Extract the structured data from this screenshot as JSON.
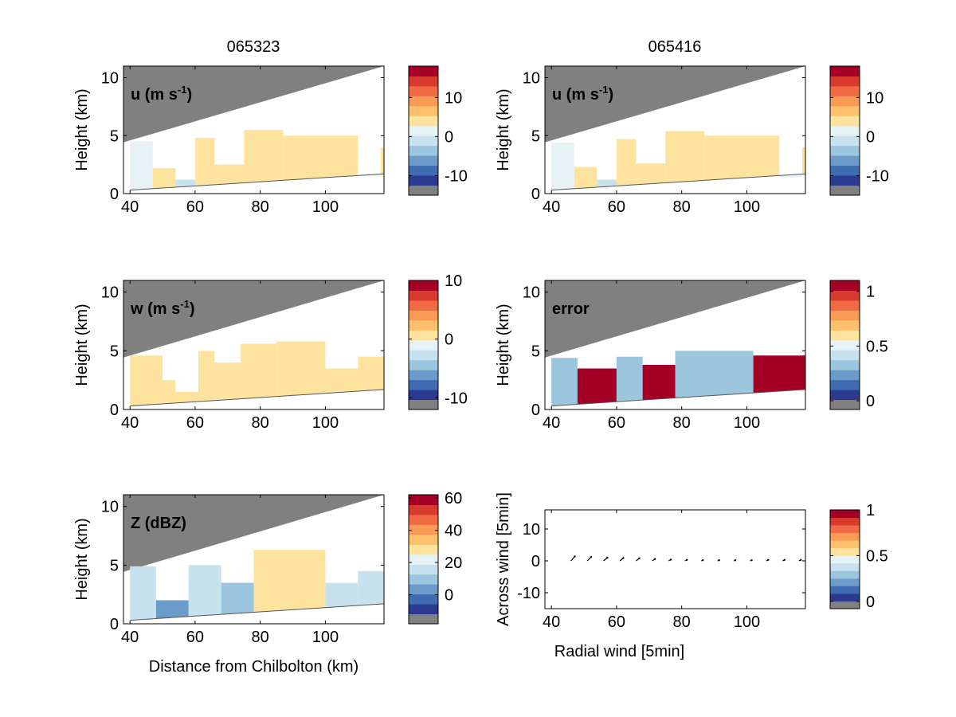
{
  "column_titles": [
    "065323",
    "065416"
  ],
  "colormap": [
    "#2b3990",
    "#3f6bb0",
    "#6a9bc9",
    "#9cc5de",
    "#c7e2ee",
    "#e6f2f3",
    "#fde39e",
    "#fdc06b",
    "#f99a55",
    "#f06a43",
    "#d83a2e",
    "#a50026"
  ],
  "fill_color": "#808080",
  "chart_data": [
    {
      "id": "u1",
      "type": "heatmap",
      "label": "u (m s",
      "label_sup": "-1",
      "label_close": ")",
      "ylabel": "Height (km)",
      "xlabel": "",
      "xlim": [
        38,
        118
      ],
      "ylim": [
        0,
        11
      ],
      "xticks": [
        40,
        60,
        80,
        100
      ],
      "yticks": [
        0,
        5,
        10
      ],
      "clim": [
        -15,
        18
      ],
      "cticks": [
        10,
        0,
        -10
      ],
      "segments": [
        {
          "x": [
            40,
            47
          ],
          "top": 4.5,
          "value": 2
        },
        {
          "x": [
            47,
            54
          ],
          "top": 2.2,
          "value": 3
        },
        {
          "x": [
            54,
            60
          ],
          "top": 1.2,
          "value": -2
        },
        {
          "x": [
            60,
            66
          ],
          "top": 4.8,
          "value": 4
        },
        {
          "x": [
            66,
            75
          ],
          "top": 2.5,
          "value": 3
        },
        {
          "x": [
            75,
            87
          ],
          "top": 5.5,
          "value": 5
        },
        {
          "x": [
            87,
            110
          ],
          "top": 5.0,
          "value": 4
        },
        {
          "x": [
            110,
            117
          ],
          "top": 1.5,
          "value": 2
        },
        {
          "x": [
            117,
            118
          ],
          "top": 4.0,
          "value": 3
        }
      ]
    },
    {
      "id": "u2",
      "type": "heatmap",
      "label": "u (m s",
      "label_sup": "-1",
      "label_close": ")",
      "ylabel": "Height (km)",
      "xlabel": "",
      "xlim": [
        38,
        118
      ],
      "ylim": [
        0,
        11
      ],
      "xticks": [
        40,
        60,
        80,
        100
      ],
      "yticks": [
        0,
        5,
        10
      ],
      "clim": [
        -15,
        18
      ],
      "cticks": [
        10,
        0,
        -10
      ],
      "segments": [
        {
          "x": [
            40,
            47
          ],
          "top": 4.4,
          "value": 2
        },
        {
          "x": [
            47,
            54
          ],
          "top": 2.3,
          "value": 3
        },
        {
          "x": [
            54,
            60
          ],
          "top": 1.2,
          "value": -2
        },
        {
          "x": [
            60,
            66
          ],
          "top": 4.7,
          "value": 4
        },
        {
          "x": [
            66,
            75
          ],
          "top": 2.6,
          "value": 3
        },
        {
          "x": [
            75,
            87
          ],
          "top": 5.4,
          "value": 5
        },
        {
          "x": [
            87,
            110
          ],
          "top": 5.0,
          "value": 4
        },
        {
          "x": [
            110,
            117
          ],
          "top": 1.4,
          "value": 2
        },
        {
          "x": [
            117,
            118
          ],
          "top": 4.0,
          "value": 3
        }
      ]
    },
    {
      "id": "w",
      "type": "heatmap",
      "label": "w (m s",
      "label_sup": "-1",
      "label_close": ")",
      "ylabel": "Height (km)",
      "xlabel": "",
      "xlim": [
        38,
        118
      ],
      "ylim": [
        0,
        11
      ],
      "xticks": [
        40,
        60,
        80,
        100
      ],
      "yticks": [
        0,
        5,
        10
      ],
      "clim": [
        -12,
        10
      ],
      "cticks": [
        10,
        0,
        -10
      ],
      "segments": [
        {
          "x": [
            40,
            50
          ],
          "top": 4.6,
          "value": 1
        },
        {
          "x": [
            50,
            54
          ],
          "top": 2.5,
          "value": 1
        },
        {
          "x": [
            54,
            61
          ],
          "top": 1.5,
          "value": 0
        },
        {
          "x": [
            61,
            66
          ],
          "top": 5.0,
          "value": 1
        },
        {
          "x": [
            66,
            74
          ],
          "top": 4.0,
          "value": 0
        },
        {
          "x": [
            74,
            85
          ],
          "top": 5.6,
          "value": 1
        },
        {
          "x": [
            85,
            100
          ],
          "top": 5.8,
          "value": 0
        },
        {
          "x": [
            100,
            110
          ],
          "top": 3.5,
          "value": 1
        },
        {
          "x": [
            110,
            118
          ],
          "top": 4.5,
          "value": 0
        }
      ]
    },
    {
      "id": "err",
      "type": "heatmap",
      "label": "error",
      "label_sup": "",
      "label_close": "",
      "ylabel": "Height (km)",
      "xlabel": "",
      "xlim": [
        38,
        118
      ],
      "ylim": [
        0,
        11
      ],
      "xticks": [
        40,
        60,
        80,
        100
      ],
      "yticks": [
        0,
        5,
        10
      ],
      "clim": [
        -0.08,
        1.1
      ],
      "cticks": [
        1,
        0.5,
        0
      ],
      "segments": [
        {
          "x": [
            40,
            48
          ],
          "top": 4.4,
          "value": 0.3
        },
        {
          "x": [
            48,
            60
          ],
          "top": 3.5,
          "value": 1.05
        },
        {
          "x": [
            60,
            68
          ],
          "top": 4.5,
          "value": 0.3
        },
        {
          "x": [
            68,
            78
          ],
          "top": 3.8,
          "value": 1.05
        },
        {
          "x": [
            78,
            102
          ],
          "top": 5.0,
          "value": 0.3
        },
        {
          "x": [
            102,
            118
          ],
          "top": 4.6,
          "value": 1.05
        }
      ]
    },
    {
      "id": "z",
      "type": "heatmap",
      "label": "Z (dBZ)",
      "label_sup": "",
      "label_close": "",
      "ylabel": "Height (km)",
      "xlabel": "Distance from Chilbolton (km)",
      "xlim": [
        38,
        118
      ],
      "ylim": [
        0,
        11
      ],
      "xticks": [
        40,
        60,
        80,
        100
      ],
      "yticks": [
        0,
        5,
        10
      ],
      "clim": [
        -18,
        62
      ],
      "cticks": [
        60,
        40,
        20,
        0
      ],
      "segments": [
        {
          "x": [
            40,
            48
          ],
          "top": 4.9,
          "value": 15
        },
        {
          "x": [
            48,
            58
          ],
          "top": 2.0,
          "value": 5
        },
        {
          "x": [
            58,
            68
          ],
          "top": 5.0,
          "value": 18
        },
        {
          "x": [
            68,
            78
          ],
          "top": 3.5,
          "value": 12
        },
        {
          "x": [
            78,
            100
          ],
          "top": 6.3,
          "value": 28
        },
        {
          "x": [
            100,
            110
          ],
          "top": 3.5,
          "value": 15
        },
        {
          "x": [
            110,
            118
          ],
          "top": 4.5,
          "value": 18
        }
      ]
    },
    {
      "id": "vec",
      "type": "scatter",
      "label": "",
      "label_sup": "",
      "label_close": "",
      "ylabel": "Across wind [5min]",
      "xlabel": "Radial wind [5min]",
      "xlim": [
        38,
        118
      ],
      "ylim": [
        -15,
        16
      ],
      "xticks": [
        40,
        60,
        80,
        100
      ],
      "yticks": [
        -10,
        0,
        10
      ],
      "clim": [
        -0.08,
        1.0
      ],
      "cticks": [
        1,
        0.5,
        0
      ],
      "points": [
        {
          "x": 46,
          "y": 0,
          "u": 1.2,
          "v": 1.4
        },
        {
          "x": 51,
          "y": 0,
          "u": 1.2,
          "v": 1.2
        },
        {
          "x": 56,
          "y": 0,
          "u": 1.2,
          "v": 1.0
        },
        {
          "x": 61,
          "y": 0,
          "u": 1.1,
          "v": 0.9
        },
        {
          "x": 66,
          "y": 0,
          "u": 1.0,
          "v": 0.8
        },
        {
          "x": 71,
          "y": 0,
          "u": 0.8,
          "v": 0.6
        },
        {
          "x": 76,
          "y": 0,
          "u": 0.7,
          "v": 0.4
        },
        {
          "x": 81,
          "y": 0,
          "u": 0.6,
          "v": 0.3
        },
        {
          "x": 86,
          "y": 0,
          "u": 0.5,
          "v": 0.2
        },
        {
          "x": 91,
          "y": 0,
          "u": 0.5,
          "v": 0.2
        },
        {
          "x": 96,
          "y": 0,
          "u": 0.5,
          "v": 0.2
        },
        {
          "x": 101,
          "y": 0,
          "u": 0.5,
          "v": 0.2
        },
        {
          "x": 106,
          "y": 0,
          "u": 0.6,
          "v": 0.3
        },
        {
          "x": 111,
          "y": 0,
          "u": 0.6,
          "v": 0.3
        },
        {
          "x": 116,
          "y": 0,
          "u": 0.6,
          "v": 0.3
        }
      ]
    }
  ]
}
